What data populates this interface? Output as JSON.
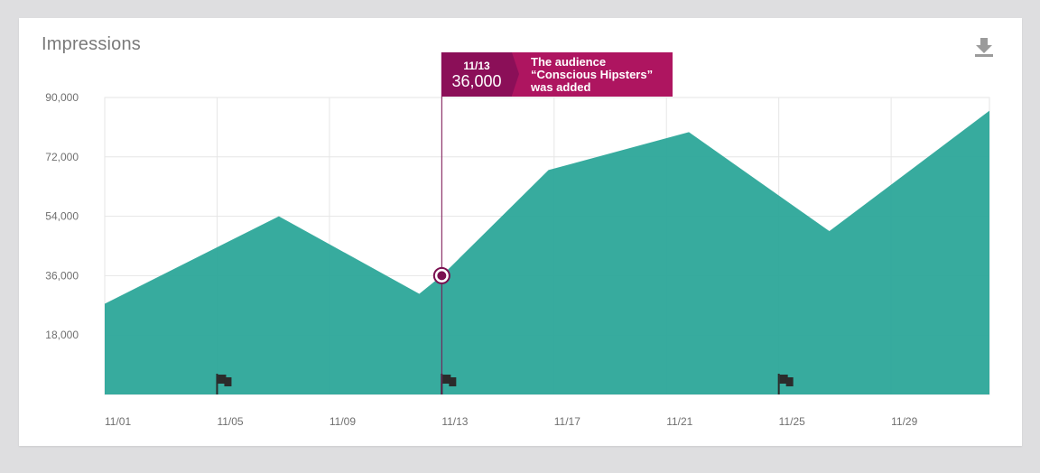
{
  "card": {
    "title": "Impressions"
  },
  "icons": {
    "download": "download-icon",
    "flag": "flag-icon",
    "marker": "selected-point-marker"
  },
  "colors": {
    "area": "#2aa698",
    "tooltip_dark": "#8b0f58",
    "tooltip_light": "#ae1560",
    "grid": "#e6e6e6"
  },
  "tooltip": {
    "date": "11/13",
    "value": "36,000",
    "message": "The audience “Conscious Hipsters” was added"
  },
  "chart_data": {
    "type": "area",
    "title": "Impressions",
    "xlabel": "",
    "ylabel": "",
    "x_range": [
      "11/01",
      "12/02"
    ],
    "ylim": [
      0,
      90000
    ],
    "yticks": [
      18000,
      36000,
      54000,
      72000,
      90000
    ],
    "ytick_labels": [
      "18,000",
      "36,000",
      "54,000",
      "72,000",
      "90,000"
    ],
    "xticks": [
      0,
      4,
      8,
      12,
      16,
      20,
      24,
      28
    ],
    "xtick_labels": [
      "11/01",
      "11/05",
      "11/09",
      "11/13",
      "11/17",
      "11/21",
      "11/25",
      "11/29"
    ],
    "grid": true,
    "series": [
      {
        "x_days": [
          0,
          6.2,
          11.2,
          12.0,
          15.8,
          20.8,
          25.8,
          31.5
        ],
        "values": [
          27500,
          54000,
          30500,
          36000,
          68000,
          79500,
          49500,
          86000
        ]
      }
    ],
    "annotations": [
      {
        "day": 4,
        "label": "flag"
      },
      {
        "day": 12,
        "label": "flag"
      },
      {
        "day": 24,
        "label": "flag"
      }
    ],
    "highlight": {
      "day": 12,
      "value": 36000
    }
  }
}
